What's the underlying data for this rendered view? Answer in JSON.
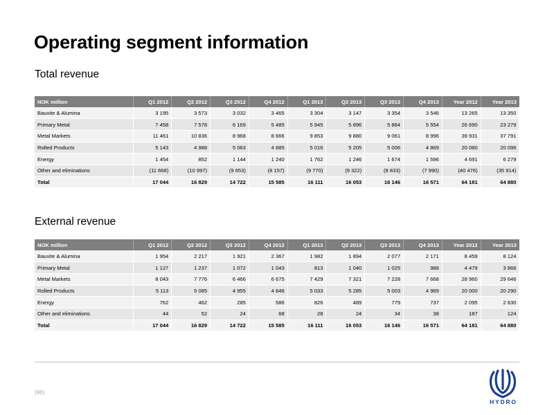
{
  "page": {
    "title": "Operating segment information",
    "page_number": "(96)"
  },
  "logo": {
    "word": "HYDRO",
    "color": "#1b3f8b"
  },
  "total_revenue": {
    "title": "Total revenue",
    "headers": [
      "NOK million",
      "Q1 2012",
      "Q2 2012",
      "Q3 2012",
      "Q4 2012",
      "Q1 2013",
      "Q2 2013",
      "Q3 2013",
      "Q4 2013",
      "Year 2012",
      "Year 2013"
    ],
    "rows": [
      [
        "Bauxite & Alumina",
        "3 195",
        "3 573",
        "3 032",
        "3 465",
        "3 304",
        "3 147",
        "3 354",
        "3 546",
        "13 265",
        "13 350"
      ],
      [
        "Primary Metal",
        "7 458",
        "7 578",
        "6 169",
        "5 485",
        "5 945",
        "5 896",
        "5 884",
        "5 554",
        "26 690",
        "23 279"
      ],
      [
        "Metal Markets",
        "11 461",
        "10 836",
        "8 968",
        "8 666",
        "9 853",
        "9 880",
        "9 061",
        "8 996",
        "39 931",
        "37 791"
      ],
      [
        "Rolled Products",
        "5 143",
        "4 988",
        "5 063",
        "4 885",
        "5 016",
        "5 205",
        "5 006",
        "4 869",
        "20 080",
        "20 096"
      ],
      [
        "Energy",
        "1 454",
        "852",
        "1 144",
        "1 240",
        "1 762",
        "1 246",
        "1 674",
        "1 596",
        "4 691",
        "6 279"
      ],
      [
        "Other and eliminations",
        "(11 668)",
        "(10 997)",
        "(9 653)",
        "(8 157)",
        "(9 770)",
        "(9 322)",
        "(8 833)",
        "(7 990)",
        "(40 476)",
        "(35 914)"
      ]
    ],
    "total": [
      "Total",
      "17 044",
      "16 829",
      "14 722",
      "15 585",
      "16 111",
      "16 053",
      "16 146",
      "16 571",
      "64 181",
      "64 880"
    ]
  },
  "external_revenue": {
    "title": "External revenue",
    "headers": [
      "NOK million",
      "Q1 2012",
      "Q2 2012",
      "Q3 2012",
      "Q4 2012",
      "Q1 2013",
      "Q2 2013",
      "Q3 2013",
      "Q4 2013",
      "Year 2012",
      "Year 2013"
    ],
    "rows": [
      [
        "Bauxite & Alumina",
        "1 954",
        "2 217",
        "1 921",
        "2 367",
        "1 982",
        "1 894",
        "2 077",
        "2 171",
        "8 459",
        "8 124"
      ],
      [
        "Primary Metal",
        "1 127",
        "1 237",
        "1 072",
        "1 043",
        "813",
        "1 040",
        "1 025",
        "988",
        "4 479",
        "3 866"
      ],
      [
        "Metal Markets",
        "8 043",
        "7 776",
        "6 466",
        "6 675",
        "7 429",
        "7 321",
        "7 228",
        "7 668",
        "28 960",
        "29 646"
      ],
      [
        "Rolled Products",
        "5 113",
        "5 085",
        "4 955",
        "4 846",
        "5 033",
        "5 285",
        "5 003",
        "4 969",
        "20 000",
        "20 290"
      ],
      [
        "Energy",
        "762",
        "462",
        "285",
        "586",
        "826",
        "489",
        "779",
        "737",
        "2 095",
        "2 830"
      ],
      [
        "Other and eliminations",
        "44",
        "52",
        "24",
        "68",
        "28",
        "24",
        "34",
        "38",
        "187",
        "124"
      ]
    ],
    "total": [
      "Total",
      "17 044",
      "16 829",
      "14 722",
      "15 585",
      "16 111",
      "16 053",
      "16 146",
      "16 571",
      "64 181",
      "64 880"
    ]
  }
}
